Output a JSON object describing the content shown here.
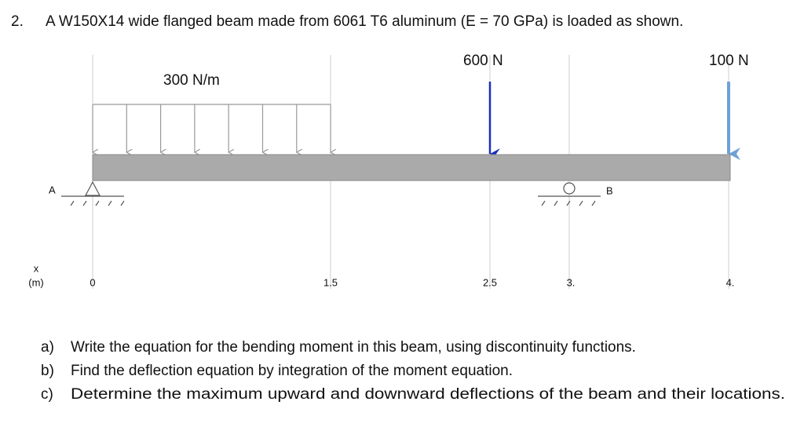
{
  "problem": {
    "number": "2.",
    "text": "A W150X14 wide flanged beam made from 6061 T6 aluminum (E = 70 GPa) is loaded as shown."
  },
  "loads": {
    "distributed": "300 N/m",
    "point_1": "600 N",
    "point_2": "100 N"
  },
  "supports": {
    "left": "A",
    "right": "B"
  },
  "axis": {
    "symbol": "x",
    "unit": "(m)",
    "ticks": [
      "0",
      "1.5",
      "2.5",
      "3.",
      "4."
    ]
  },
  "questions": [
    {
      "label": "a)",
      "text": "Write the equation for the bending moment in this beam, using discontinuity functions."
    },
    {
      "label": "b)",
      "text": "Find the deflection equation by integration of the moment equation."
    },
    {
      "label": "c)",
      "text": "Determine the maximum upward and downward deflections of the beam and their locations."
    }
  ]
}
